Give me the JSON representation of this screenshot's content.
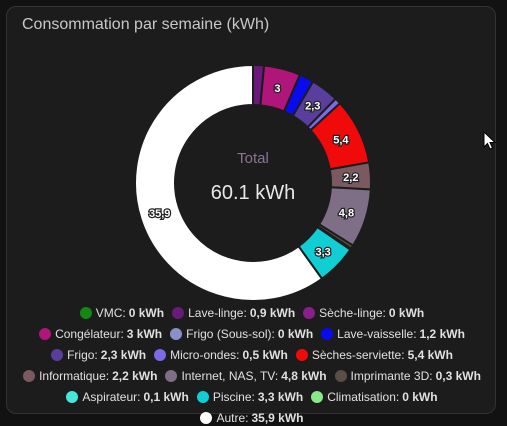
{
  "card": {
    "title": "Consommation par semaine (kWh)"
  },
  "chart_data": {
    "type": "pie",
    "donut": true,
    "center_label": "Total",
    "center_value": "60.1 kWh",
    "unit": "kWh",
    "series": [
      {
        "name": "VMC",
        "value": 0,
        "display": "0 kWh",
        "color": "#138913"
      },
      {
        "name": "Lave-linge",
        "value": 0.9,
        "display": "0,9 kWh",
        "color": "#6a1a7a"
      },
      {
        "name": "Sèche-linge",
        "value": 0,
        "display": "0 kWh",
        "color": "#8a1e8a"
      },
      {
        "name": "Congélateur",
        "value": 3,
        "display": "3 kWh",
        "color": "#b0157a"
      },
      {
        "name": "Frigo (Sous-sol)",
        "value": 0,
        "display": "0 kWh",
        "color": "#8a90c8"
      },
      {
        "name": "Lave-vaisselle",
        "value": 1.2,
        "display": "1,2 kWh",
        "color": "#0a0aef"
      },
      {
        "name": "Frigo",
        "value": 2.3,
        "display": "2,3 kWh",
        "color": "#5a3e9e"
      },
      {
        "name": "Micro-ondes",
        "value": 0.5,
        "display": "0,5 kWh",
        "color": "#7a6ae6"
      },
      {
        "name": "Sèches-serviette",
        "value": 5.4,
        "display": "5,4 kWh",
        "color": "#f00a0a"
      },
      {
        "name": "Informatique",
        "value": 2.2,
        "display": "2,2 kWh",
        "color": "#7a5a60"
      },
      {
        "name": "Internet, NAS, TV",
        "value": 4.8,
        "display": "4,8 kWh",
        "color": "#7e6e86"
      },
      {
        "name": "Imprimante 3D",
        "value": 0.3,
        "display": "0,3 kWh",
        "color": "#5a4e46"
      },
      {
        "name": "Aspirateur",
        "value": 0.1,
        "display": "0,1 kWh",
        "color": "#46e6d8"
      },
      {
        "name": "Piscine",
        "value": 3.3,
        "display": "3,3 kWh",
        "color": "#10ced4"
      },
      {
        "name": "Climatisation",
        "value": 0,
        "display": "0 kWh",
        "color": "#8ae88a"
      },
      {
        "name": "Autre",
        "value": 35.9,
        "display": "35,9 kWh",
        "color": "#ffffff"
      }
    ],
    "slice_labels": [
      {
        "series": "Congélateur",
        "text": "3"
      },
      {
        "series": "Frigo",
        "text": "2,3"
      },
      {
        "series": "Sèches-serviette",
        "text": "5,4"
      },
      {
        "series": "Informatique",
        "text": "2,2"
      },
      {
        "series": "Internet, NAS, TV",
        "text": "4,8"
      },
      {
        "series": "Piscine",
        "text": "3,3"
      },
      {
        "series": "Autre",
        "text": "35,9"
      }
    ],
    "legend_position": "bottom"
  }
}
